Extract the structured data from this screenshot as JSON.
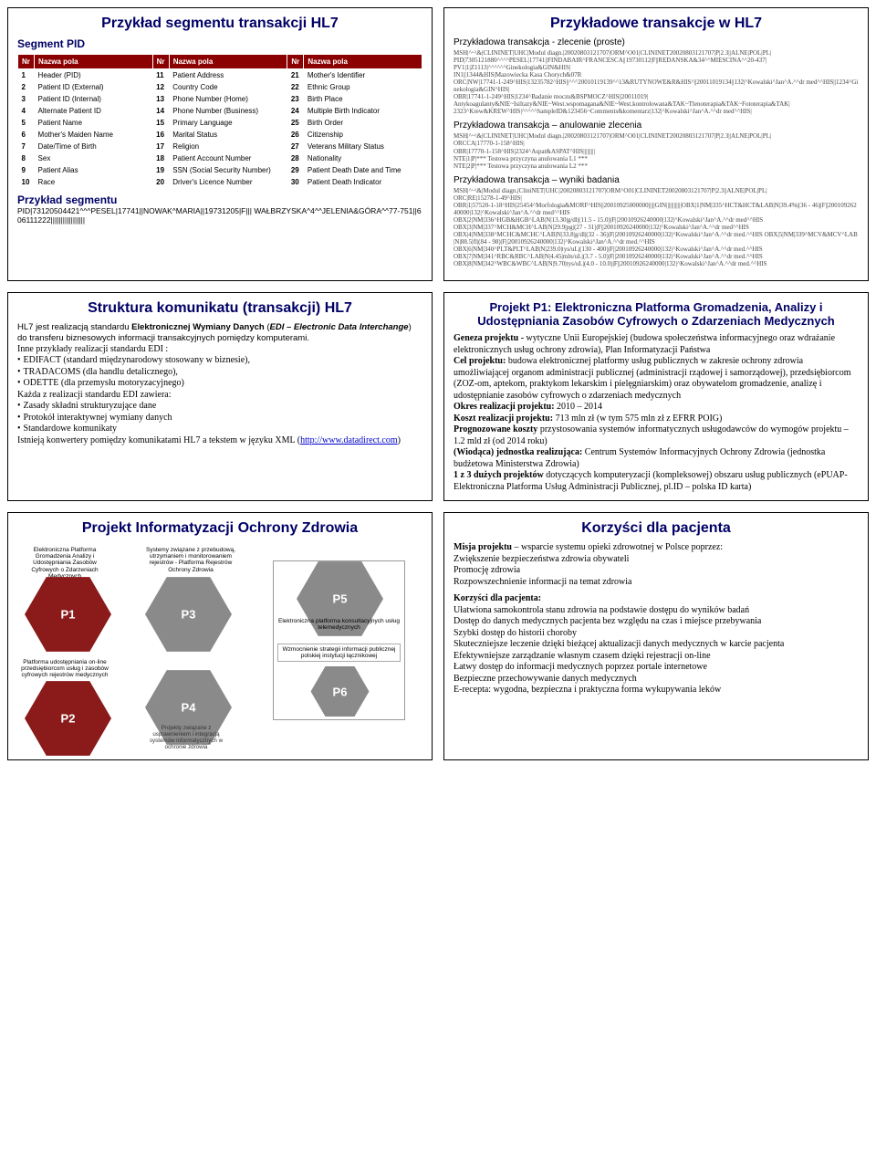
{
  "slide1": {
    "title": "Przykład segmentu transakcji HL7",
    "subtitle": "Segment PID",
    "headers": [
      "Nr",
      "Nazwa pola",
      "Nr",
      "Nazwa pola",
      "Nr",
      "Nazwa pola"
    ],
    "rows": [
      [
        "1",
        "Header (PID)",
        "11",
        "Patient Address",
        "21",
        "Mother's Identifier"
      ],
      [
        "2",
        "Patient ID (External)",
        "12",
        "Country Code",
        "22",
        "Ethnic Group"
      ],
      [
        "3",
        "Patient ID (Internal)",
        "13",
        "Phone Number (Home)",
        "23",
        "Birth Place"
      ],
      [
        "4",
        "Alternate Patient ID",
        "14",
        "Phone Number (Business)",
        "24",
        "Multiple Birth Indicator"
      ],
      [
        "5",
        "Patient Name",
        "15",
        "Primary Language",
        "25",
        "Birth Order"
      ],
      [
        "6",
        "Mother's Maiden Name",
        "16",
        "Marital Status",
        "26",
        "Citizenship"
      ],
      [
        "7",
        "Date/Time of Birth",
        "17",
        "Religion",
        "27",
        "Veterans Military Status"
      ],
      [
        "8",
        "Sex",
        "18",
        "Patient Account Number",
        "28",
        "Nationality"
      ],
      [
        "9",
        "Patient Alias",
        "19",
        "SSN (Social Security Number)",
        "29",
        "Patient Death Date and Time"
      ],
      [
        "10",
        "Race",
        "20",
        "Driver's Licence Number",
        "30",
        "Patient Death Indicator"
      ]
    ],
    "segExampleLabel": "Przykład segmentu",
    "segExample": "PID|73120504421^^^PESEL|17741||NOWAK^MARIA||19731205|F||| WAŁBRZYSKA^4^^JELENIA&GÓRA^^77-751||606111222|||||||||||||||||"
  },
  "slide2": {
    "title": "Przykładowe transakcje w HL7",
    "t1_label": "Przykładowa transakcja  - zlecenie (proste)",
    "t1_code": "MSH|^~\\&|CLININET|UHC|Modul diagn.|20020803121707|ORM^O01|CLININET20020803121707|P|2.3||ALNE|POL|PL|\nPID|7305121880^^^^PESEL|17741||FINDABAIR^FRANCESCA||19730112|F||REDANSKA&34^^MIESCINA^^20-437|\nPV1|1|Z1113|^^^^^^Ginekologia&GIN&HIS|\nIN1||1344&HIS|Mazowiecka Kasa Chorych&07R\nORC|NW|17741-1-249^HIS|13235782^HIS||^^^20010119139^^13&RUTYNOWE&R&HIS^||20011019134||132|^Kowalski^Jan^A.^^dr med^^HIS||1234^Ginekologia&GIN^HIS|\nOBR|17741-1-249^HIS|1234^Badanie moczu&BSPMOCZ^HIS||20011019|\nAntykoagulanty&NIE~Isiltazy&NIE~West.wspomagana&NIE~West.kontrolowana&TAK~Tlenoterapia&TAK~Fototerapia&TAK|\n2323^Krew&KREW^HIS|^^^^^SampleID&123456~Comments&komentarz|132|^Kowalski^Jan^A.^^dr med^^HIS|",
    "t2_label": "Przykładowa transakcja – anulowanie zlecenia",
    "t2_code": "MSH|^~\\&|CLININET|UHC|Modul diagn.|20020803121707|ORM^O01|CLININET20020803121707|P|2.3||ALNE|POL|PL|\nORCCA|17770-1-158^HIS|\nOBR|17770-1-158^HIS|2324^Aspat&ASPAT^HIS|||||||||\nNTE|1|P|*** Testowa przyczyna anulowania L1 ***\nNTE|2|P|*** Testowa przyczyna anulowania L2 ***",
    "t3_label": "Przykładowa transakcja – wyniki badania",
    "t3_code": "MSH|^~\\&|Modul diagn.|CliniNET|UHC|20020803121707|ORM^O01|CLININET20020803121707|P|2.3||ALNE|POL|PL|\nORC|RE|15278-1-49^HIS|\nOBR|1|57520-1-18^HIS|25454^Morfologia&MORF^HIS||20010925000000|||||GIN||||||||||||OBX|1|NM|335^HCT&HCT&LAB|N|39.4%|(36 - 46)|F||20010926240000|132|^Kowalski^Jan^A.^^dr med^^HIS\nOBX|2|NM|336^HGB&HGB^LAB|N|13.30|g/dl|(11.5 - 15.0)|F||20010926240000|132|^Kowalski^Jan^A.^^dr med^^HIS\nOBX|3|NM|337^MCH&MCH^LAB|N|29.9|pg|(27 - 31)|F||20010926240000|132|^Kowalski^Jan^A.^^dr med^^HIS\nOBX|4|NM|338^MCHC&MCHC^LAB|N|33.8|g/dl|(32 - 36)|F||20010926240000|132|^Kowalski^Jan^A.^^dr med.^^HIS OBX|5|NM|339^MCV&MCV^LAB|N|88.5|fl|(84 - 98)|F||20010926240000|132|^Kowalski^Jan^A.^^dr med.^^HIS\nOBX|6|NM|340^PLT&PLT^LAB|N|239.0|tys/uL|(130 - 400)|F||20010926240000|132|^Kowalski^Jan^A.^^dr med.^^HIS\nOBX|7|NM|341^RBC&RBC^LAB|N|4.45|mln/uL|(3.7 - 5.0)|F||20010926240000|132|^Kowalski^Jan^A.^^dr med.^^HIS\nOBX|8|NM|342^WBC&WBC^LAB|N|9.70|tys/uL|(4.0 - 10.0)|F||20010926240000|132|^Kowalski^Jan^A.^^dr med.^^HIS"
  },
  "slide3": {
    "title": "Struktura komunikatu (transakcji) HL7",
    "lead": "HL7 jest realizacją standardu Elektronicznej Wymiany Danych (EDI – Electronic Data Interchange) do transferu biznesowych informacji transakcyjnych pomiędzy komputerami.",
    "line2": "Inne przykłady realizacji standardu EDI :",
    "bullets1": [
      "EDIFACT (standard międzynarodowy stosowany w biznesie),",
      "TRADACOMS (dla handlu detalicznego),",
      "ODETTE (dla przemysłu motoryzacyjnego)"
    ],
    "line3": "Każda z realizacji standardu EDI zawiera:",
    "bullets2": [
      "Zasady składni strukturyzujące dane",
      "Protokół interaktywnej wymiany danych",
      "Standardowe komunikaty"
    ],
    "line4_pre": "Istnieją konwertery pomiędzy komunikatami HL7 a tekstem w języku XML (",
    "link": "http://www.datadirect.com",
    "line4_post": ")"
  },
  "slide4": {
    "title": "Projekt P1: Elektroniczna Platforma Gromadzenia, Analizy i Udostępniania Zasobów Cyfrowych o Zdarzeniach Medycznych",
    "p1_label": "Geneza projektu -",
    "p1_text": " wytyczne Unii Europejskiej (budowa społeczeństwa informacyjnego oraz wdrażanie elektronicznych usług ochrony zdrowia), Plan Informatyzacji Państwa",
    "p2_label": "Cel projektu:",
    "p2_text": " budowa elektronicznej platformy usług publicznych w zakresie ochrony zdrowia umożliwiającej organom administracji publicznej (administracji rządowej i samorządowej), przedsiębiorcom (ZOZ-om, aptekom, praktykom lekarskim i pielęgniarskim) oraz obywatelom gromadzenie, analizę i udostępnianie zasobów cyfrowych o zdarzeniach medycznych",
    "p3_label": "Okres realizacji projektu:",
    "p3_text": " 2010 – 2014",
    "p4_label": "Koszt realizacji projektu:",
    "p4_text": " 713 mln zł (w tym 575 mln zł z EFRR POIG)",
    "p5_label": "Prognozowane koszty",
    "p5_text": " przystosowania systemów informatycznych usługodawców do wymogów projektu – 1.2 mld zł (od 2014 roku)",
    "p6_label": "(Wiodąca) jednostka realizująca:",
    "p6_text": " Centrum Systemów Informacyjnych Ochrony Zdrowia (jednostka budżetowa Ministerstwa Zdrowia)",
    "p7_label": "1 z 3 dużych projektów",
    "p7_text": " dotyczących komputeryzacji (kompleksowej) obszaru usług publicznych (ePUAP- Elektroniczna Platforma Usług Administracji Publicznej, pl.ID – polska ID karta)"
  },
  "slide5": {
    "title": "Projekt Informatyzacji Ochrony Zdrowia",
    "hex": {
      "p1": {
        "label": "P1",
        "caption": "Elektroniczna Platforma Gromadzenia Analizy i Udostępniania Zasobów Cyfrowych o Zdarzeniach Medycznych",
        "color": "#8b1a1a"
      },
      "p2": {
        "label": "P2",
        "caption": "Platforma udostępniania on-line przedsiębiorcom usług i zasobów cyfrowych rejestrów medycznych",
        "color": "#8b1a1a"
      },
      "p3": {
        "label": "P3",
        "caption": "Systemy związane z przebudową, utrzymaniem i monitorowaniem rejestrów - Platforma Rejestrów Ochrony Zdrowia",
        "color": "#8a8a8a"
      },
      "p4": {
        "label": "P4",
        "caption": "Projekty związane z usprawnieniem i integracją systemów informatycznych w ochronie zdrowia",
        "color": "#8a8a8a"
      },
      "p5": {
        "label": "P5",
        "caption": "Elektroniczna platforma konsultacyjnych usług telemedycznych",
        "color": "#8a8a8a"
      },
      "p6": {
        "label": "P6",
        "caption": "Wzmocnienie strategii informacji publicznej polskiej instytucji łącznikowej",
        "color": "#8a8a8a"
      }
    }
  },
  "slide6": {
    "title": "Korzyści dla pacjenta",
    "p1_label": "Misja projektu",
    "p1_text": " – wsparcie systemu opieki zdrowotnej w Polsce poprzez:",
    "lines1": [
      "Zwiększenie bezpieczeństwa zdrowia obywateli",
      "Promocję zdrowia",
      "Rozpowszechnienie informacji na temat zdrowia"
    ],
    "p2_label": "Korzyści dla pacjenta:",
    "lines2": [
      "Ułatwiona samokontrola stanu zdrowia na podstawie dostępu do wyników badań",
      "Dostęp do danych medycznych pacjenta bez względu na czas i miejsce przebywania",
      "Szybki dostęp do historii choroby",
      "Skuteczniejsze leczenie dzięki bieżącej aktualizacji danych medycznych w karcie pacjenta",
      "Efektywniejsze zarządzanie własnym czasem dzięki rejestracji on-line",
      "Łatwy dostęp do informacji medycznych poprzez portale internetowe",
      "Bezpieczne przechowywanie danych medycznych",
      "E-recepta: wygodna, bezpieczna i praktyczna forma wykupywania leków"
    ]
  },
  "colors": {
    "header_bg": "#8b0000",
    "title_color": "#000066"
  }
}
